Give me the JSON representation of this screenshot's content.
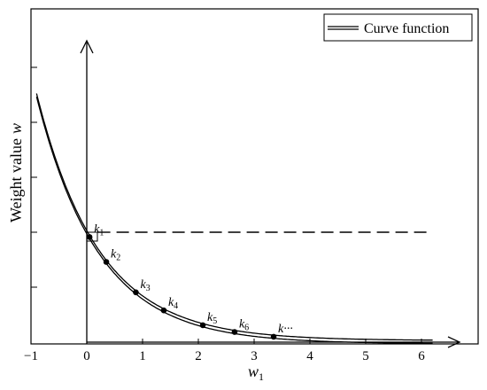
{
  "chart_data": {
    "type": "line",
    "xlabel_main": "w",
    "xlabel_sub": "1",
    "ylabel_text": "Weight value",
    "ylabel_var": "w",
    "xlim": [
      -1,
      6.6
    ],
    "ylim": [
      0,
      1.45
    ],
    "x_ticks": [
      "−1",
      "0",
      "1",
      "2",
      "3",
      "4",
      "5",
      "6"
    ],
    "x_tick_values": [
      -1,
      0,
      1,
      2,
      3,
      4,
      5,
      6
    ],
    "y_tick_values": [
      0.25,
      0.5,
      0.75,
      1.0,
      1.25
    ],
    "grid": false,
    "legend_position": "top-right",
    "series": [
      {
        "name": "Curve function",
        "style": "double line",
        "function": "w = 0.5 * exp(-0.9 * w1)",
        "x_start": -0.9,
        "x_end": 6.2,
        "color": "#000000"
      }
    ],
    "reference_line": {
      "y": 0.5,
      "x_from": 0.2,
      "x_to": 6.2,
      "style": "dashed"
    },
    "points": [
      {
        "label": "k",
        "sub": "1",
        "x": 0.05,
        "y": 0.48
      },
      {
        "label": "k",
        "sub": "2",
        "x": 0.35,
        "y": 0.35
      },
      {
        "label": "k",
        "sub": "3",
        "x": 0.88,
        "y": 0.2
      },
      {
        "label": "k",
        "sub": "4",
        "x": 1.38,
        "y": 0.115
      },
      {
        "label": "k",
        "sub": "5",
        "x": 2.08,
        "y": 0.06
      },
      {
        "label": "k",
        "sub": "6",
        "x": 2.65,
        "y": 0.035
      },
      {
        "label": "k···",
        "sub": "",
        "x": 3.35,
        "y": 0.02
      }
    ]
  }
}
